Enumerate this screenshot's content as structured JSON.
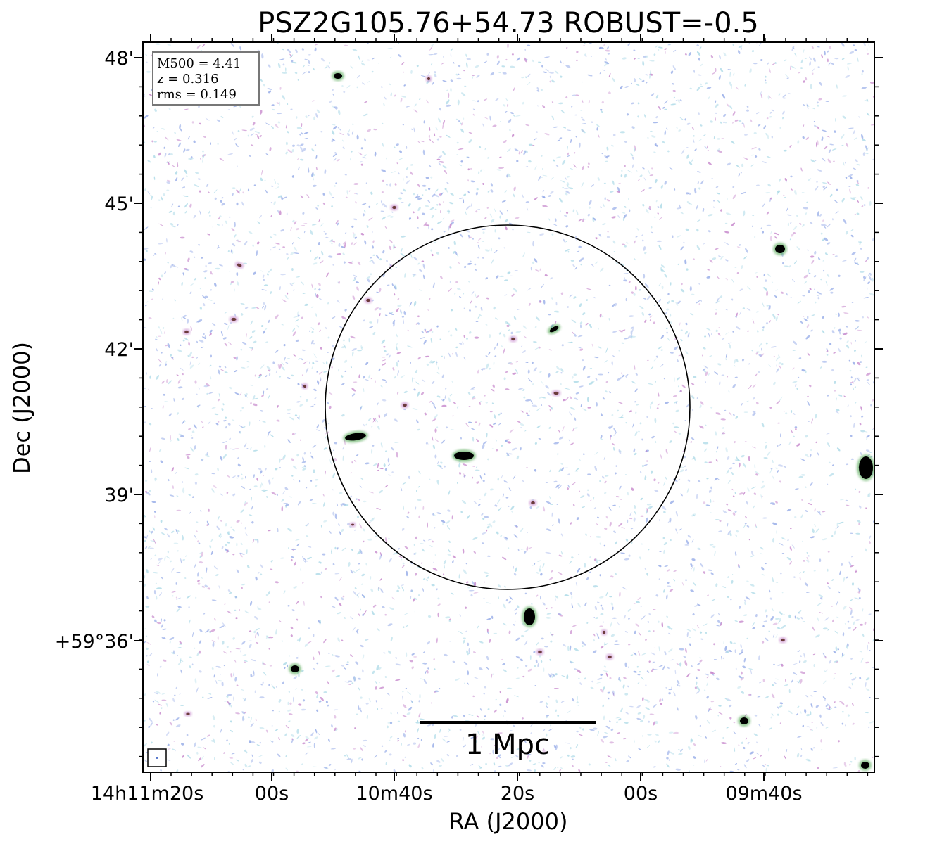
{
  "title": "PSZ2G105.76+54.73 ROBUST=-0.5",
  "axes": {
    "xlabel": "RA (J2000)",
    "ylabel": "Dec (J2000)",
    "x_ticks": [
      "14h11m20s",
      "00s",
      "10m40s",
      "20s",
      "00s",
      "09m40s"
    ],
    "y_ticks": [
      "48'",
      "45'",
      "42'",
      "39'",
      "+59°36'"
    ]
  },
  "info_box": {
    "line1": "M500 = 4.41",
    "line2": "z = 0.316",
    "line3": "rms = 0.149"
  },
  "scale_bar": {
    "label": "1 Mpc"
  },
  "colors": {
    "noise_blue": "#8fa6e6",
    "noise_cyan": "#a9d8e6",
    "noise_magenta": "#c27fc8",
    "source_core": "#000000",
    "source_halo": "#3a9a3a"
  }
}
